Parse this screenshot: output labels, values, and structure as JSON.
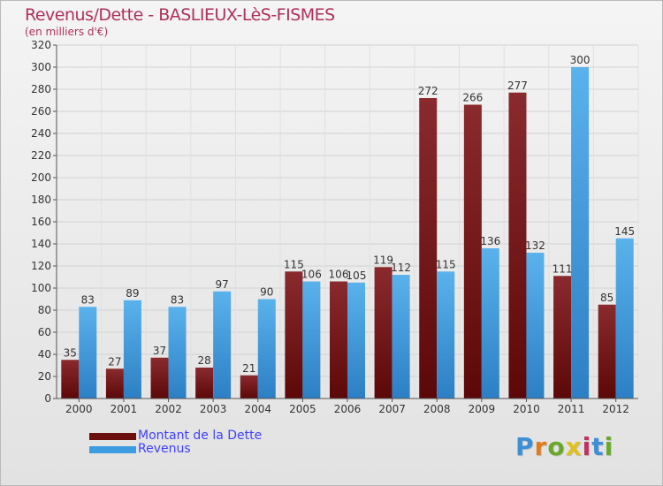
{
  "header": {
    "title": "Revenus/Dette - BASLIEUX-LèS-FISMES",
    "subtitle": "(en milliers d'€)"
  },
  "chart_data": {
    "type": "bar",
    "categories": [
      "2000",
      "2001",
      "2002",
      "2003",
      "2004",
      "2005",
      "2006",
      "2007",
      "2008",
      "2009",
      "2010",
      "2011",
      "2012"
    ],
    "series": [
      {
        "name": "Montant de la Dette",
        "color": "#7a1c1c",
        "values": [
          35,
          27,
          37,
          28,
          21,
          115,
          106,
          119,
          272,
          266,
          277,
          111,
          85
        ]
      },
      {
        "name": "Revenus",
        "color": "#3d9be0",
        "values": [
          83,
          89,
          83,
          97,
          90,
          106,
          105,
          112,
          115,
          136,
          132,
          300,
          145
        ]
      }
    ],
    "ylim": [
      0,
      320
    ],
    "yticks": [
      0,
      20,
      40,
      60,
      80,
      100,
      120,
      140,
      160,
      180,
      200,
      220,
      240,
      260,
      280,
      300,
      320
    ],
    "grid": true,
    "legend_position": "bottom-left"
  },
  "legend": {
    "items": [
      {
        "label": "Montant de la Dette",
        "color": "#6b0f0f"
      },
      {
        "label": "Revenus",
        "color": "#3d9be0"
      }
    ]
  },
  "logo": {
    "letters": [
      "P",
      "r",
      "o",
      "x",
      "i",
      "t",
      "i"
    ],
    "colors": [
      "#3d8fd8",
      "#e07b20",
      "#6aa82a",
      "#e0c020",
      "#c03060",
      "#3d8fd8",
      "#6aa82a"
    ]
  }
}
